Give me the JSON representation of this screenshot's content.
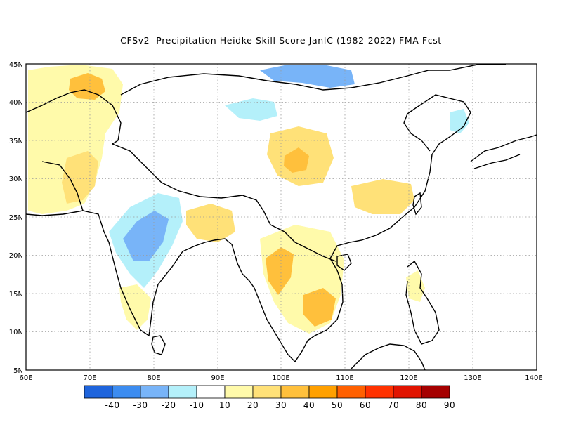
{
  "title": "CFSv2  Precipitation Heidke Skill Score JanIC (1982-2022) FMA Fcst",
  "lat_labels": [
    "45N",
    "40N",
    "35N",
    "30N",
    "25N",
    "20N",
    "15N",
    "10N",
    "5N"
  ],
  "lon_labels": [
    "60E",
    "70E",
    "80E",
    "90E",
    "100E",
    "110E",
    "120E",
    "130E",
    "140E"
  ],
  "colorbar": {
    "colors": [
      "#1e64dc",
      "#3c8cf0",
      "#78b4f8",
      "#b4f0fa",
      "#ffffff",
      "#fffaaa",
      "#ffe178",
      "#ffc03c",
      "#ffa000",
      "#ff6000",
      "#ff3200",
      "#e11400",
      "#a50000"
    ],
    "labels": [
      "-40",
      "-30",
      "-20",
      "-10",
      "10",
      "20",
      "30",
      "40",
      "50",
      "60",
      "70",
      "80",
      "90"
    ]
  },
  "map": {
    "extent": {
      "lon": [
        60,
        140
      ],
      "lat": [
        5,
        45
      ]
    },
    "grid": "dotted",
    "field": "Precipitation Heidke Skill Score",
    "regions": [
      {
        "name": "tibet-north-blue",
        "color": "#b4f0fa"
      },
      {
        "name": "mongolia-blue",
        "color": "#78b4f8"
      },
      {
        "name": "india-central-blue",
        "color": "#b4f0fa"
      },
      {
        "name": "india-core-blue",
        "color": "#78b4f8"
      },
      {
        "name": "afghanistan-yellow",
        "color": "#fffaaa"
      },
      {
        "name": "pakistan-yellow",
        "color": "#ffe178"
      },
      {
        "name": "tajik-orange",
        "color": "#ffc03c"
      },
      {
        "name": "sichuan-yellow",
        "color": "#ffe178"
      },
      {
        "name": "sichuan-orange",
        "color": "#ffc03c"
      },
      {
        "name": "south-china-yellow",
        "color": "#ffe178"
      },
      {
        "name": "indochina-yellow",
        "color": "#fffaaa"
      },
      {
        "name": "thailand-orange",
        "color": "#ffc03c"
      },
      {
        "name": "cambodia-orange",
        "color": "#ffc03c"
      },
      {
        "name": "south-india-yellow",
        "color": "#fffaaa"
      },
      {
        "name": "philippines-yellow",
        "color": "#fffaaa"
      },
      {
        "name": "bangladesh-yellow",
        "color": "#ffe178"
      },
      {
        "name": "korea-blue",
        "color": "#b4f0fa"
      }
    ]
  }
}
